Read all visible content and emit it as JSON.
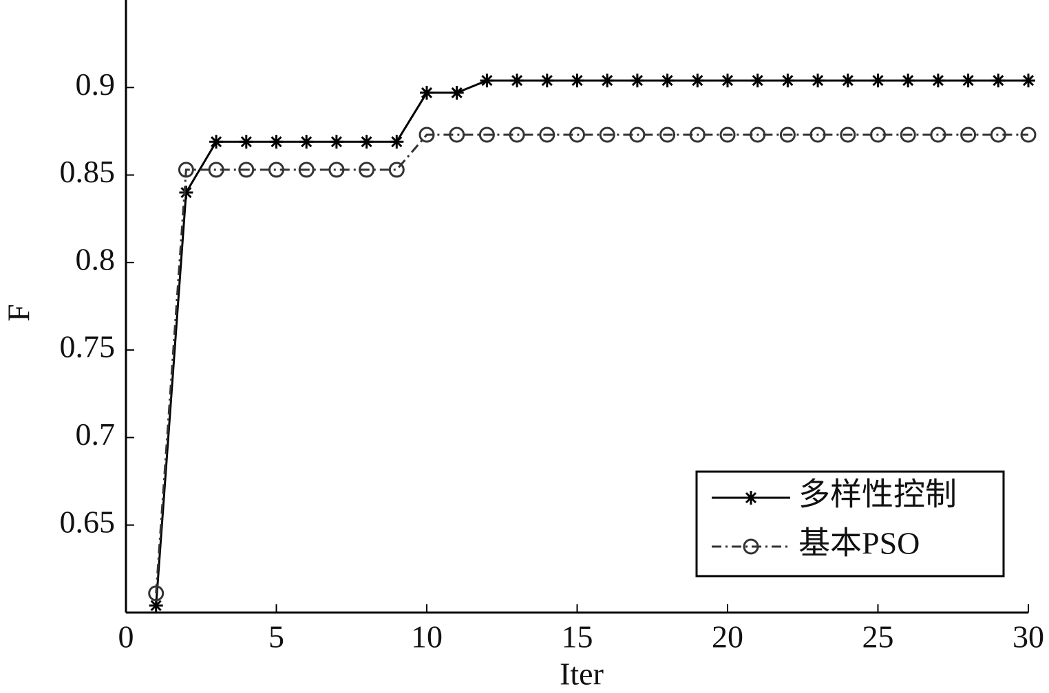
{
  "chart_data": {
    "type": "line",
    "x_label": "Iter",
    "y_label": "F",
    "x": [
      1,
      2,
      3,
      4,
      5,
      6,
      7,
      8,
      9,
      10,
      11,
      12,
      13,
      14,
      15,
      16,
      17,
      18,
      19,
      20,
      21,
      22,
      23,
      24,
      25,
      26,
      27,
      28,
      29,
      30
    ],
    "series": [
      {
        "name": "多样性控制",
        "color": "#000000",
        "marker": "star",
        "linestyle": "solid",
        "values": [
          0.604,
          0.84,
          0.869,
          0.869,
          0.869,
          0.869,
          0.869,
          0.869,
          0.869,
          0.897,
          0.897,
          0.904,
          0.904,
          0.904,
          0.904,
          0.904,
          0.904,
          0.904,
          0.904,
          0.904,
          0.904,
          0.904,
          0.904,
          0.904,
          0.904,
          0.904,
          0.904,
          0.904,
          0.904,
          0.904
        ]
      },
      {
        "name": "基本PSO",
        "color": "#333333",
        "marker": "circle",
        "linestyle": "dashdot",
        "values": [
          0.611,
          0.853,
          0.853,
          0.853,
          0.853,
          0.853,
          0.853,
          0.853,
          0.853,
          0.873,
          0.873,
          0.873,
          0.873,
          0.873,
          0.873,
          0.873,
          0.873,
          0.873,
          0.873,
          0.873,
          0.873,
          0.873,
          0.873,
          0.873,
          0.873,
          0.873,
          0.873,
          0.873,
          0.873,
          0.873
        ]
      }
    ],
    "xlim": [
      0,
      30
    ],
    "xticks": [
      0,
      5,
      10,
      15,
      20,
      25,
      30
    ],
    "ylim": [
      0.6,
      0.95
    ],
    "yticks": [
      0.65,
      0.7,
      0.75,
      0.8,
      0.85,
      0.9
    ],
    "grid": false,
    "legend_position": "lower right"
  }
}
